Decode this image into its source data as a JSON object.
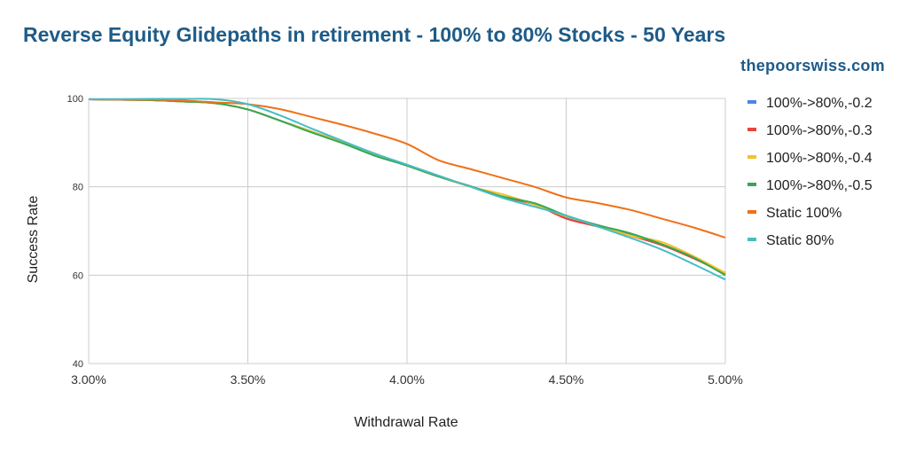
{
  "header": {
    "title": "Reverse Equity Glidepaths in retirement - 100% to 80% Stocks - 50 Years",
    "brand": "thepoorswiss.com"
  },
  "chart_data": {
    "type": "line",
    "title": "Reverse Equity Glidepaths in retirement - 100% to 80% Stocks - 50 Years",
    "xlabel": "Withdrawal Rate",
    "ylabel": "Success Rate",
    "x": [
      3.0,
      3.1,
      3.2,
      3.3,
      3.4,
      3.5,
      3.6,
      3.7,
      3.8,
      3.9,
      4.0,
      4.1,
      4.2,
      4.3,
      4.4,
      4.5,
      4.6,
      4.7,
      4.8,
      4.9,
      5.0
    ],
    "x_tick_labels": [
      "3.00%",
      "3.50%",
      "4.00%",
      "4.50%",
      "5.00%"
    ],
    "x_ticks": [
      3.0,
      3.5,
      4.0,
      4.5,
      5.0
    ],
    "xlim": [
      3.0,
      5.0
    ],
    "ylim": [
      40,
      100
    ],
    "y_ticks": [
      40,
      60,
      80,
      100
    ],
    "grid": true,
    "legend_position": "right",
    "series": [
      {
        "name": "100%->80%,-0.2",
        "color": "#4a86e8",
        "values": [
          99.8,
          99.7,
          99.6,
          99.3,
          98.9,
          97.5,
          95.0,
          92.5,
          90.0,
          87.3,
          84.8,
          82.3,
          80.1,
          77.7,
          76.0,
          73.0,
          71.0,
          69.3,
          67.0,
          64.0,
          60.5
        ]
      },
      {
        "name": "100%->80%,-0.3",
        "color": "#e8453c",
        "values": [
          99.8,
          99.7,
          99.6,
          99.3,
          98.9,
          97.5,
          95.0,
          92.5,
          90.0,
          87.3,
          84.8,
          82.3,
          80.1,
          77.7,
          76.0,
          72.8,
          71.0,
          69.0,
          66.8,
          63.8,
          60.3
        ]
      },
      {
        "name": "100%->80%,-0.4",
        "color": "#f6c026",
        "values": [
          99.8,
          99.7,
          99.6,
          99.3,
          98.9,
          97.5,
          95.0,
          92.5,
          90.0,
          87.3,
          84.8,
          82.3,
          80.0,
          78.3,
          76.0,
          73.3,
          71.3,
          69.0,
          67.5,
          64.3,
          60.5
        ]
      },
      {
        "name": "100%->80%,-0.5",
        "color": "#34a853",
        "values": [
          99.8,
          99.7,
          99.6,
          99.3,
          98.9,
          97.5,
          95.0,
          92.3,
          89.8,
          87.0,
          84.8,
          82.3,
          80.1,
          77.8,
          76.3,
          73.5,
          71.3,
          69.5,
          67.0,
          64.0,
          60.0
        ]
      },
      {
        "name": "Static 100%",
        "color": "#f07016",
        "values": [
          99.8,
          99.7,
          99.7,
          99.5,
          99.1,
          98.7,
          97.6,
          95.8,
          94.0,
          92.0,
          89.7,
          86.0,
          84.0,
          82.0,
          80.0,
          77.6,
          76.3,
          74.8,
          72.8,
          70.8,
          68.5
        ]
      },
      {
        "name": "Static 80%",
        "color": "#46bdc6",
        "values": [
          99.8,
          99.8,
          99.9,
          99.9,
          99.8,
          98.7,
          96.2,
          93.2,
          90.3,
          87.5,
          85.0,
          82.5,
          80.0,
          77.5,
          75.5,
          73.5,
          71.0,
          68.5,
          65.8,
          62.5,
          59.0
        ]
      }
    ]
  }
}
